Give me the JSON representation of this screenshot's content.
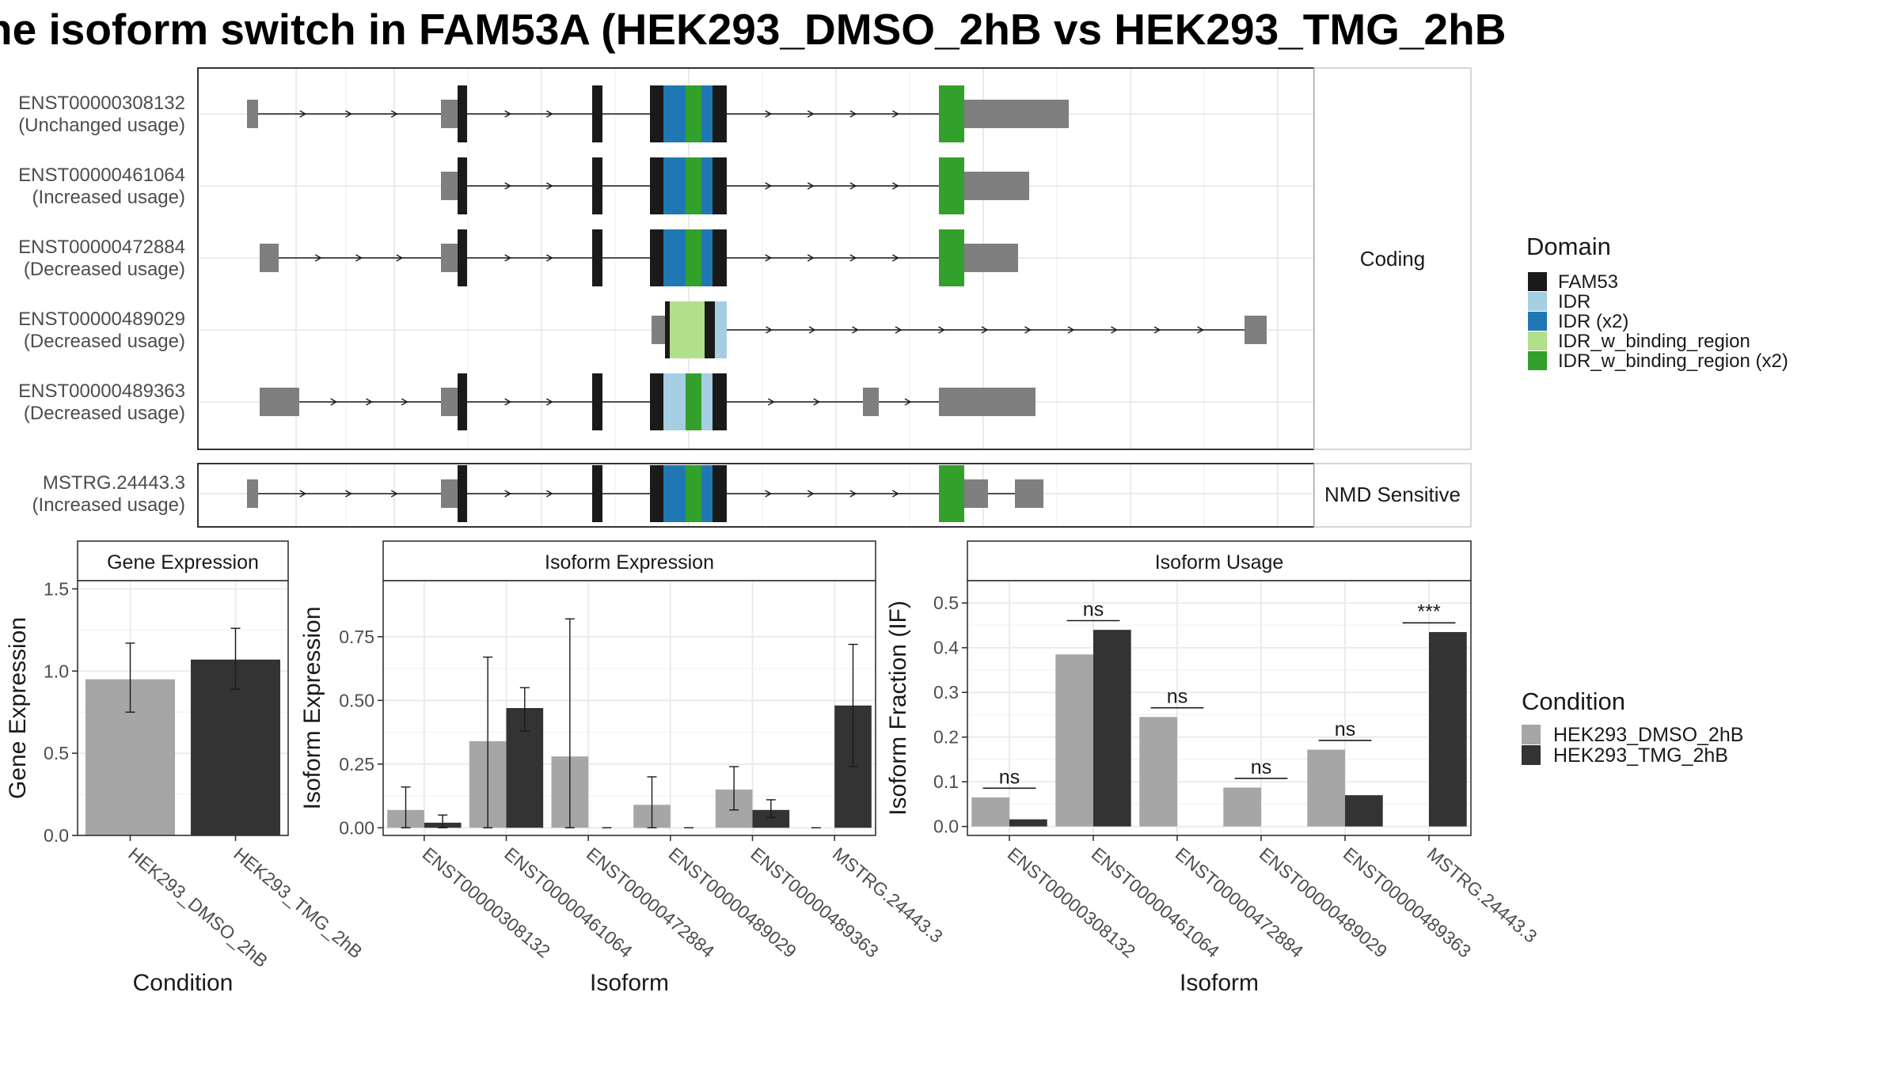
{
  "title": "ne isoform switch in FAM53A (HEK293_DMSO_2hB vs HEK293_TMG_2hB",
  "structure": {
    "coding_strip": "Coding",
    "nmd_strip": "NMD Sensitive",
    "transcripts": [
      {
        "id": "ENST00000308132",
        "usage": "(Unchanged usage)",
        "group": "coding"
      },
      {
        "id": "ENST00000461064",
        "usage": "(Increased usage)",
        "group": "coding"
      },
      {
        "id": "ENST00000472884",
        "usage": "(Decreased usage)",
        "group": "coding"
      },
      {
        "id": "ENST00000489029",
        "usage": "(Decreased usage)",
        "group": "coding"
      },
      {
        "id": "ENST00000489363",
        "usage": "(Decreased usage)",
        "group": "coding"
      },
      {
        "id": "MSTRG.24443.3",
        "usage": "(Increased usage)",
        "group": "nmd"
      }
    ]
  },
  "domain_legend": {
    "title": "Domain",
    "items": [
      {
        "label": "FAM53",
        "color": "#1a1a1a"
      },
      {
        "label": "IDR",
        "color": "#a6cee3"
      },
      {
        "label": "IDR (x2)",
        "color": "#1f78b4"
      },
      {
        "label": "IDR_w_binding_region",
        "color": "#b2df8a"
      },
      {
        "label": "IDR_w_binding_region (x2)",
        "color": "#33a02c"
      }
    ]
  },
  "condition_legend": {
    "title": "Condition",
    "items": [
      {
        "label": "HEK293_DMSO_2hB",
        "color": "#a6a6a6"
      },
      {
        "label": "HEK293_TMG_2hB",
        "color": "#333333"
      }
    ]
  },
  "chart_data": [
    {
      "type": "bar",
      "title": "Gene Expression",
      "xlabel": "Condition",
      "ylabel": "Gene Expression",
      "ylim": [
        0,
        1.55
      ],
      "yticks": [
        "0.0",
        "0.5",
        "1.0",
        "1.5"
      ],
      "categories": [
        "HEK293_DMSO_2hB",
        "HEK293_TMG_2hB"
      ],
      "values": [
        0.95,
        1.07
      ],
      "error_low": [
        0.75,
        0.89
      ],
      "error_high": [
        1.17,
        1.26
      ]
    },
    {
      "type": "bar",
      "title": "Isoform Expression",
      "xlabel": "Isoform",
      "ylabel": "Isoform Expression",
      "ylim": [
        -0.03,
        0.97
      ],
      "yticks": [
        "0.00",
        "0.25",
        "0.50",
        "0.75"
      ],
      "categories": [
        "ENST00000308132",
        "ENST00000461064",
        "ENST00000472884",
        "ENST00000489029",
        "ENST00000489363",
        "MSTRG.24443.3"
      ],
      "series": [
        {
          "name": "HEK293_DMSO_2hB",
          "values": [
            0.07,
            0.34,
            0.28,
            0.09,
            0.15,
            0.0
          ],
          "error_low": [
            0.0,
            0.0,
            0.0,
            0.0,
            0.07,
            0.0
          ],
          "error_high": [
            0.16,
            0.67,
            0.82,
            0.2,
            0.24,
            0.0
          ]
        },
        {
          "name": "HEK293_TMG_2hB",
          "values": [
            0.02,
            0.47,
            0.0,
            0.0,
            0.07,
            0.48
          ],
          "error_low": [
            0.0,
            0.38,
            0.0,
            0.0,
            0.04,
            0.24
          ],
          "error_high": [
            0.05,
            0.55,
            0.0,
            0.0,
            0.11,
            0.72
          ]
        }
      ]
    },
    {
      "type": "bar",
      "title": "Isoform Usage",
      "xlabel": "Isoform",
      "ylabel": "Isoform Fraction (IF)",
      "ylim": [
        -0.02,
        0.55
      ],
      "yticks": [
        "0.0",
        "0.1",
        "0.2",
        "0.3",
        "0.4",
        "0.5"
      ],
      "categories": [
        "ENST00000308132",
        "ENST00000461064",
        "ENST00000472884",
        "ENST00000489029",
        "ENST00000489363",
        "MSTRG.24443.3"
      ],
      "series": [
        {
          "name": "HEK293_DMSO_2hB",
          "values": [
            0.065,
            0.385,
            0.245,
            0.087,
            0.172,
            0.0
          ]
        },
        {
          "name": "HEK293_TMG_2hB",
          "values": [
            0.016,
            0.44,
            0.0,
            0.0,
            0.07,
            0.435
          ]
        }
      ],
      "significance": [
        "ns",
        "ns",
        "ns",
        "ns",
        "ns",
        "***"
      ]
    }
  ]
}
